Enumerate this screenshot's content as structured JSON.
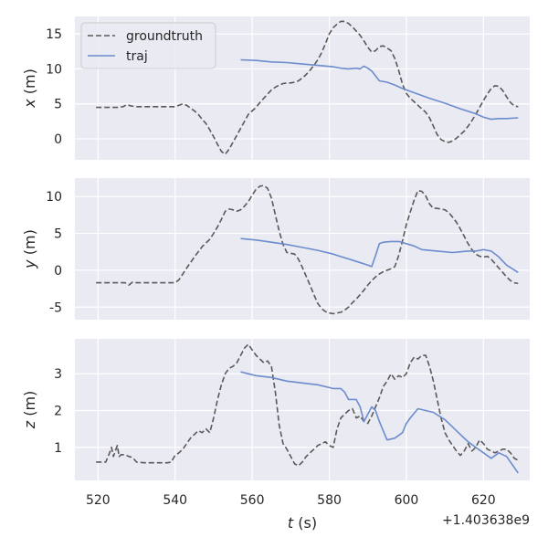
{
  "chart_data": {
    "type": "line",
    "xlabel_var": "t",
    "xlabel_unit": " (s)",
    "x_offset_label": "+1.403638e9",
    "xlim": [
      514,
      632
    ],
    "xticks": [
      520,
      540,
      560,
      580,
      600,
      620
    ],
    "colors": {
      "groundtruth": "#595959",
      "traj": "#6b8ccd",
      "panel_bg": "#eaeaf2",
      "grid": "#ffffff"
    },
    "legend": {
      "placement": "upper-left",
      "entries": [
        "groundtruth",
        "traj"
      ]
    },
    "panels": [
      {
        "id": "x",
        "ylabel_var": "x",
        "ylabel_unit": " (m)",
        "ylim": [
          -3,
          17.5
        ],
        "yticks": [
          0,
          5,
          10,
          15
        ],
        "series": [
          {
            "name": "groundtruth",
            "style": "dashed",
            "x": [
              519.5,
              523,
              525,
              526.5,
              527.5,
              528.5,
              530,
              535,
              540,
              541,
              542,
              543,
              545,
              546,
              547,
              548,
              549,
              550,
              551,
              552,
              553,
              554,
              555,
              556,
              557,
              558,
              559,
              560,
              561,
              562,
              563,
              564,
              565,
              566,
              567,
              568,
              569,
              570,
              571,
              572,
              573,
              574,
              575,
              576,
              577,
              578,
              579,
              580,
              581,
              582,
              583,
              584,
              585,
              586,
              587,
              588,
              589,
              590,
              591,
              592,
              593,
              594,
              595,
              596,
              597,
              598,
              599,
              600,
              601,
              602,
              603,
              604,
              605,
              606,
              607,
              608,
              609,
              610,
              611,
              612,
              613,
              614,
              615,
              616,
              617,
              618,
              619,
              620,
              621,
              622,
              623,
              624,
              625,
              626,
              627,
              628,
              629
            ],
            "y": [
              4.5,
              4.5,
              4.5,
              4.6,
              4.9,
              4.7,
              4.6,
              4.6,
              4.6,
              4.8,
              5.0,
              4.8,
              4.0,
              3.5,
              2.8,
              2.2,
              1.3,
              0.3,
              -0.8,
              -1.8,
              -2.2,
              -1.5,
              -0.5,
              0.5,
              1.5,
              2.5,
              3.5,
              4.0,
              4.5,
              5.2,
              5.8,
              6.4,
              7.0,
              7.4,
              7.7,
              7.9,
              8.0,
              8.0,
              8.1,
              8.3,
              8.7,
              9.2,
              9.8,
              10.5,
              11.3,
              12.3,
              13.6,
              15.0,
              15.9,
              16.4,
              16.8,
              16.8,
              16.5,
              16.0,
              15.4,
              14.8,
              14.0,
              13.1,
              12.4,
              12.6,
              13.2,
              13.3,
              13.0,
              12.6,
              11.5,
              9.8,
              7.8,
              6.5,
              5.8,
              5.3,
              4.8,
              4.3,
              3.8,
              3.0,
              1.8,
              0.6,
              -0.1,
              -0.4,
              -0.5,
              -0.3,
              0.1,
              0.6,
              1.1,
              1.8,
              2.6,
              3.5,
              4.5,
              5.5,
              6.4,
              7.2,
              7.6,
              7.5,
              6.9,
              6.0,
              5.2,
              4.7,
              4.6
            ]
          },
          {
            "name": "traj",
            "style": "solid",
            "x": [
              557,
              561,
              565,
              569,
              573,
              577,
              581,
              583,
              585,
              587,
              588,
              589,
              590,
              591,
              593,
              595,
              597,
              599,
              602,
              606,
              610,
              614,
              618,
              620,
              622,
              624,
              626,
              629
            ],
            "y": [
              11.3,
              11.2,
              11.0,
              10.9,
              10.7,
              10.5,
              10.3,
              10.1,
              10.0,
              10.1,
              10.0,
              10.4,
              10.1,
              9.7,
              8.3,
              8.1,
              7.7,
              7.2,
              6.6,
              5.8,
              5.1,
              4.3,
              3.6,
              3.1,
              2.8,
              2.9,
              2.9,
              3.0
            ]
          }
        ]
      },
      {
        "id": "y",
        "ylabel_var": "y",
        "ylabel_unit": " (m)",
        "ylim": [
          -6.7,
          12.5
        ],
        "yticks": [
          -5,
          0,
          5,
          10
        ],
        "series": [
          {
            "name": "groundtruth",
            "style": "dashed",
            "x": [
              519.5,
              524,
              526,
              527,
              528,
              529,
              530,
              535,
              540,
              541,
              542,
              543,
              545,
              547,
              549,
              550,
              551,
              552,
              553,
              554,
              555,
              556,
              557,
              558,
              559,
              560,
              561,
              562,
              563,
              564,
              565,
              566,
              567,
              568,
              569,
              570,
              571,
              572,
              573,
              574,
              575,
              576,
              577,
              578,
              579,
              580,
              581,
              582,
              583,
              584,
              585,
              586,
              587,
              588,
              589,
              590,
              591,
              592,
              593,
              594,
              595,
              596,
              597,
              598,
              599,
              600,
              601,
              602,
              603,
              604,
              605,
              606,
              607,
              608,
              609,
              610,
              611,
              612,
              613,
              614,
              615,
              616,
              617,
              618,
              619,
              620,
              621,
              622,
              623,
              624,
              625,
              626,
              627,
              628,
              629
            ],
            "y": [
              -1.7,
              -1.7,
              -1.7,
              -1.7,
              -2.0,
              -1.6,
              -1.7,
              -1.7,
              -1.7,
              -1.3,
              -0.5,
              0.3,
              1.8,
              3.2,
              4.2,
              5.0,
              5.9,
              6.9,
              8.0,
              8.3,
              8.2,
              8.0,
              8.2,
              8.7,
              9.3,
              10.2,
              11.0,
              11.4,
              11.5,
              11.1,
              9.8,
              7.5,
              5.3,
              3.5,
              2.4,
              2.3,
              2.2,
              1.5,
              0.4,
              -0.8,
              -2.0,
              -3.3,
              -4.5,
              -5.2,
              -5.6,
              -5.8,
              -5.9,
              -5.8,
              -5.7,
              -5.4,
              -5.0,
              -4.4,
              -3.9,
              -3.3,
              -2.7,
              -2.0,
              -1.4,
              -0.9,
              -0.5,
              -0.2,
              0.0,
              0.2,
              0.5,
              2.0,
              4.0,
              6.2,
              7.9,
              9.5,
              10.8,
              10.7,
              10.1,
              9.0,
              8.4,
              8.4,
              8.3,
              8.2,
              7.8,
              7.2,
              6.5,
              5.6,
              4.6,
              3.6,
              2.8,
              2.2,
              1.9,
              1.8,
              1.9,
              1.5,
              0.9,
              0.3,
              -0.3,
              -0.9,
              -1.4,
              -1.7,
              -1.8
            ]
          },
          {
            "name": "traj",
            "style": "solid",
            "x": [
              557,
              561,
              565,
              569,
              573,
              577,
              581,
              584,
              587,
              590,
              591,
              592,
              593,
              594,
              596,
              598,
              600,
              602,
              604,
              608,
              612,
              614,
              616,
              618,
              620,
              621,
              622,
              624,
              626,
              629
            ],
            "y": [
              4.3,
              4.1,
              3.8,
              3.5,
              3.1,
              2.7,
              2.2,
              1.7,
              1.2,
              0.7,
              0.5,
              2.0,
              3.6,
              3.8,
              3.9,
              3.9,
              3.6,
              3.3,
              2.8,
              2.6,
              2.4,
              2.5,
              2.6,
              2.6,
              2.8,
              2.7,
              2.6,
              1.8,
              0.7,
              -0.3
            ]
          }
        ]
      },
      {
        "id": "z",
        "ylabel_var": "z",
        "ylabel_unit": " (m)",
        "ylim": [
          0.1,
          3.95
        ],
        "yticks": [
          1,
          2,
          3
        ],
        "series": [
          {
            "name": "groundtruth",
            "style": "dashed",
            "x": [
              519.5,
              522,
              523,
              523.5,
              524,
              525,
              525.5,
              526,
              527,
              528,
              529,
              530,
              532,
              535,
              538,
              539,
              540,
              541,
              542,
              543,
              544,
              545,
              546,
              547,
              548,
              549,
              550,
              551,
              552,
              553,
              554,
              555,
              556,
              557,
              558,
              559,
              560,
              561,
              562,
              563,
              564,
              565,
              566,
              567,
              568,
              569,
              570,
              571,
              572,
              573,
              574,
              575,
              576,
              577,
              578,
              579,
              580,
              581,
              582,
              583,
              584,
              585,
              586,
              587,
              588,
              589,
              590,
              591,
              592,
              593,
              594,
              595,
              596,
              597,
              598,
              599,
              600,
              601,
              602,
              603,
              604,
              605,
              606,
              607,
              608,
              609,
              610,
              611,
              612,
              613,
              614,
              615,
              616,
              617,
              618,
              619,
              620,
              621,
              622,
              623,
              624,
              625,
              626,
              627,
              628,
              629
            ],
            "y": [
              0.6,
              0.6,
              0.85,
              1.0,
              0.75,
              1.05,
              0.75,
              0.8,
              0.8,
              0.75,
              0.72,
              0.6,
              0.58,
              0.58,
              0.58,
              0.6,
              0.78,
              0.85,
              0.95,
              1.1,
              1.25,
              1.35,
              1.45,
              1.4,
              1.5,
              1.4,
              1.8,
              2.3,
              2.7,
              3.0,
              3.15,
              3.2,
              3.3,
              3.5,
              3.7,
              3.8,
              3.65,
              3.5,
              3.4,
              3.3,
              3.35,
              3.2,
              2.5,
              1.6,
              1.1,
              0.95,
              0.75,
              0.55,
              0.5,
              0.6,
              0.75,
              0.85,
              0.95,
              1.05,
              1.1,
              1.15,
              1.05,
              1.0,
              1.5,
              1.8,
              1.9,
              2.0,
              2.05,
              1.8,
              1.85,
              1.7,
              1.65,
              1.85,
              2.1,
              2.35,
              2.65,
              2.8,
              3.0,
              2.85,
              2.95,
              2.9,
              3.0,
              3.3,
              3.45,
              3.4,
              3.5,
              3.5,
              3.2,
              2.8,
              2.3,
              1.8,
              1.4,
              1.2,
              1.05,
              0.9,
              0.78,
              0.9,
              1.1,
              0.9,
              1.0,
              1.2,
              1.1,
              0.95,
              0.9,
              0.85,
              0.9,
              0.95,
              0.95,
              0.85,
              0.7,
              0.65
            ]
          },
          {
            "name": "traj",
            "style": "solid",
            "x": [
              557,
              561,
              565,
              569,
              573,
              577,
              581,
              583,
              584,
              585,
              586,
              587,
              588,
              589,
              590,
              591,
              592,
              593,
              595,
              597,
              599,
              600,
              601,
              603,
              607,
              610,
              612,
              614,
              616,
              618,
              620,
              622,
              624,
              626,
              629
            ],
            "y": [
              3.05,
              2.95,
              2.9,
              2.8,
              2.75,
              2.7,
              2.6,
              2.6,
              2.5,
              2.3,
              2.3,
              2.3,
              2.1,
              1.7,
              1.9,
              2.1,
              2.0,
              1.7,
              1.2,
              1.25,
              1.4,
              1.65,
              1.8,
              2.05,
              1.95,
              1.75,
              1.55,
              1.35,
              1.15,
              1.0,
              0.85,
              0.7,
              0.85,
              0.75,
              0.3
            ]
          }
        ]
      }
    ]
  }
}
